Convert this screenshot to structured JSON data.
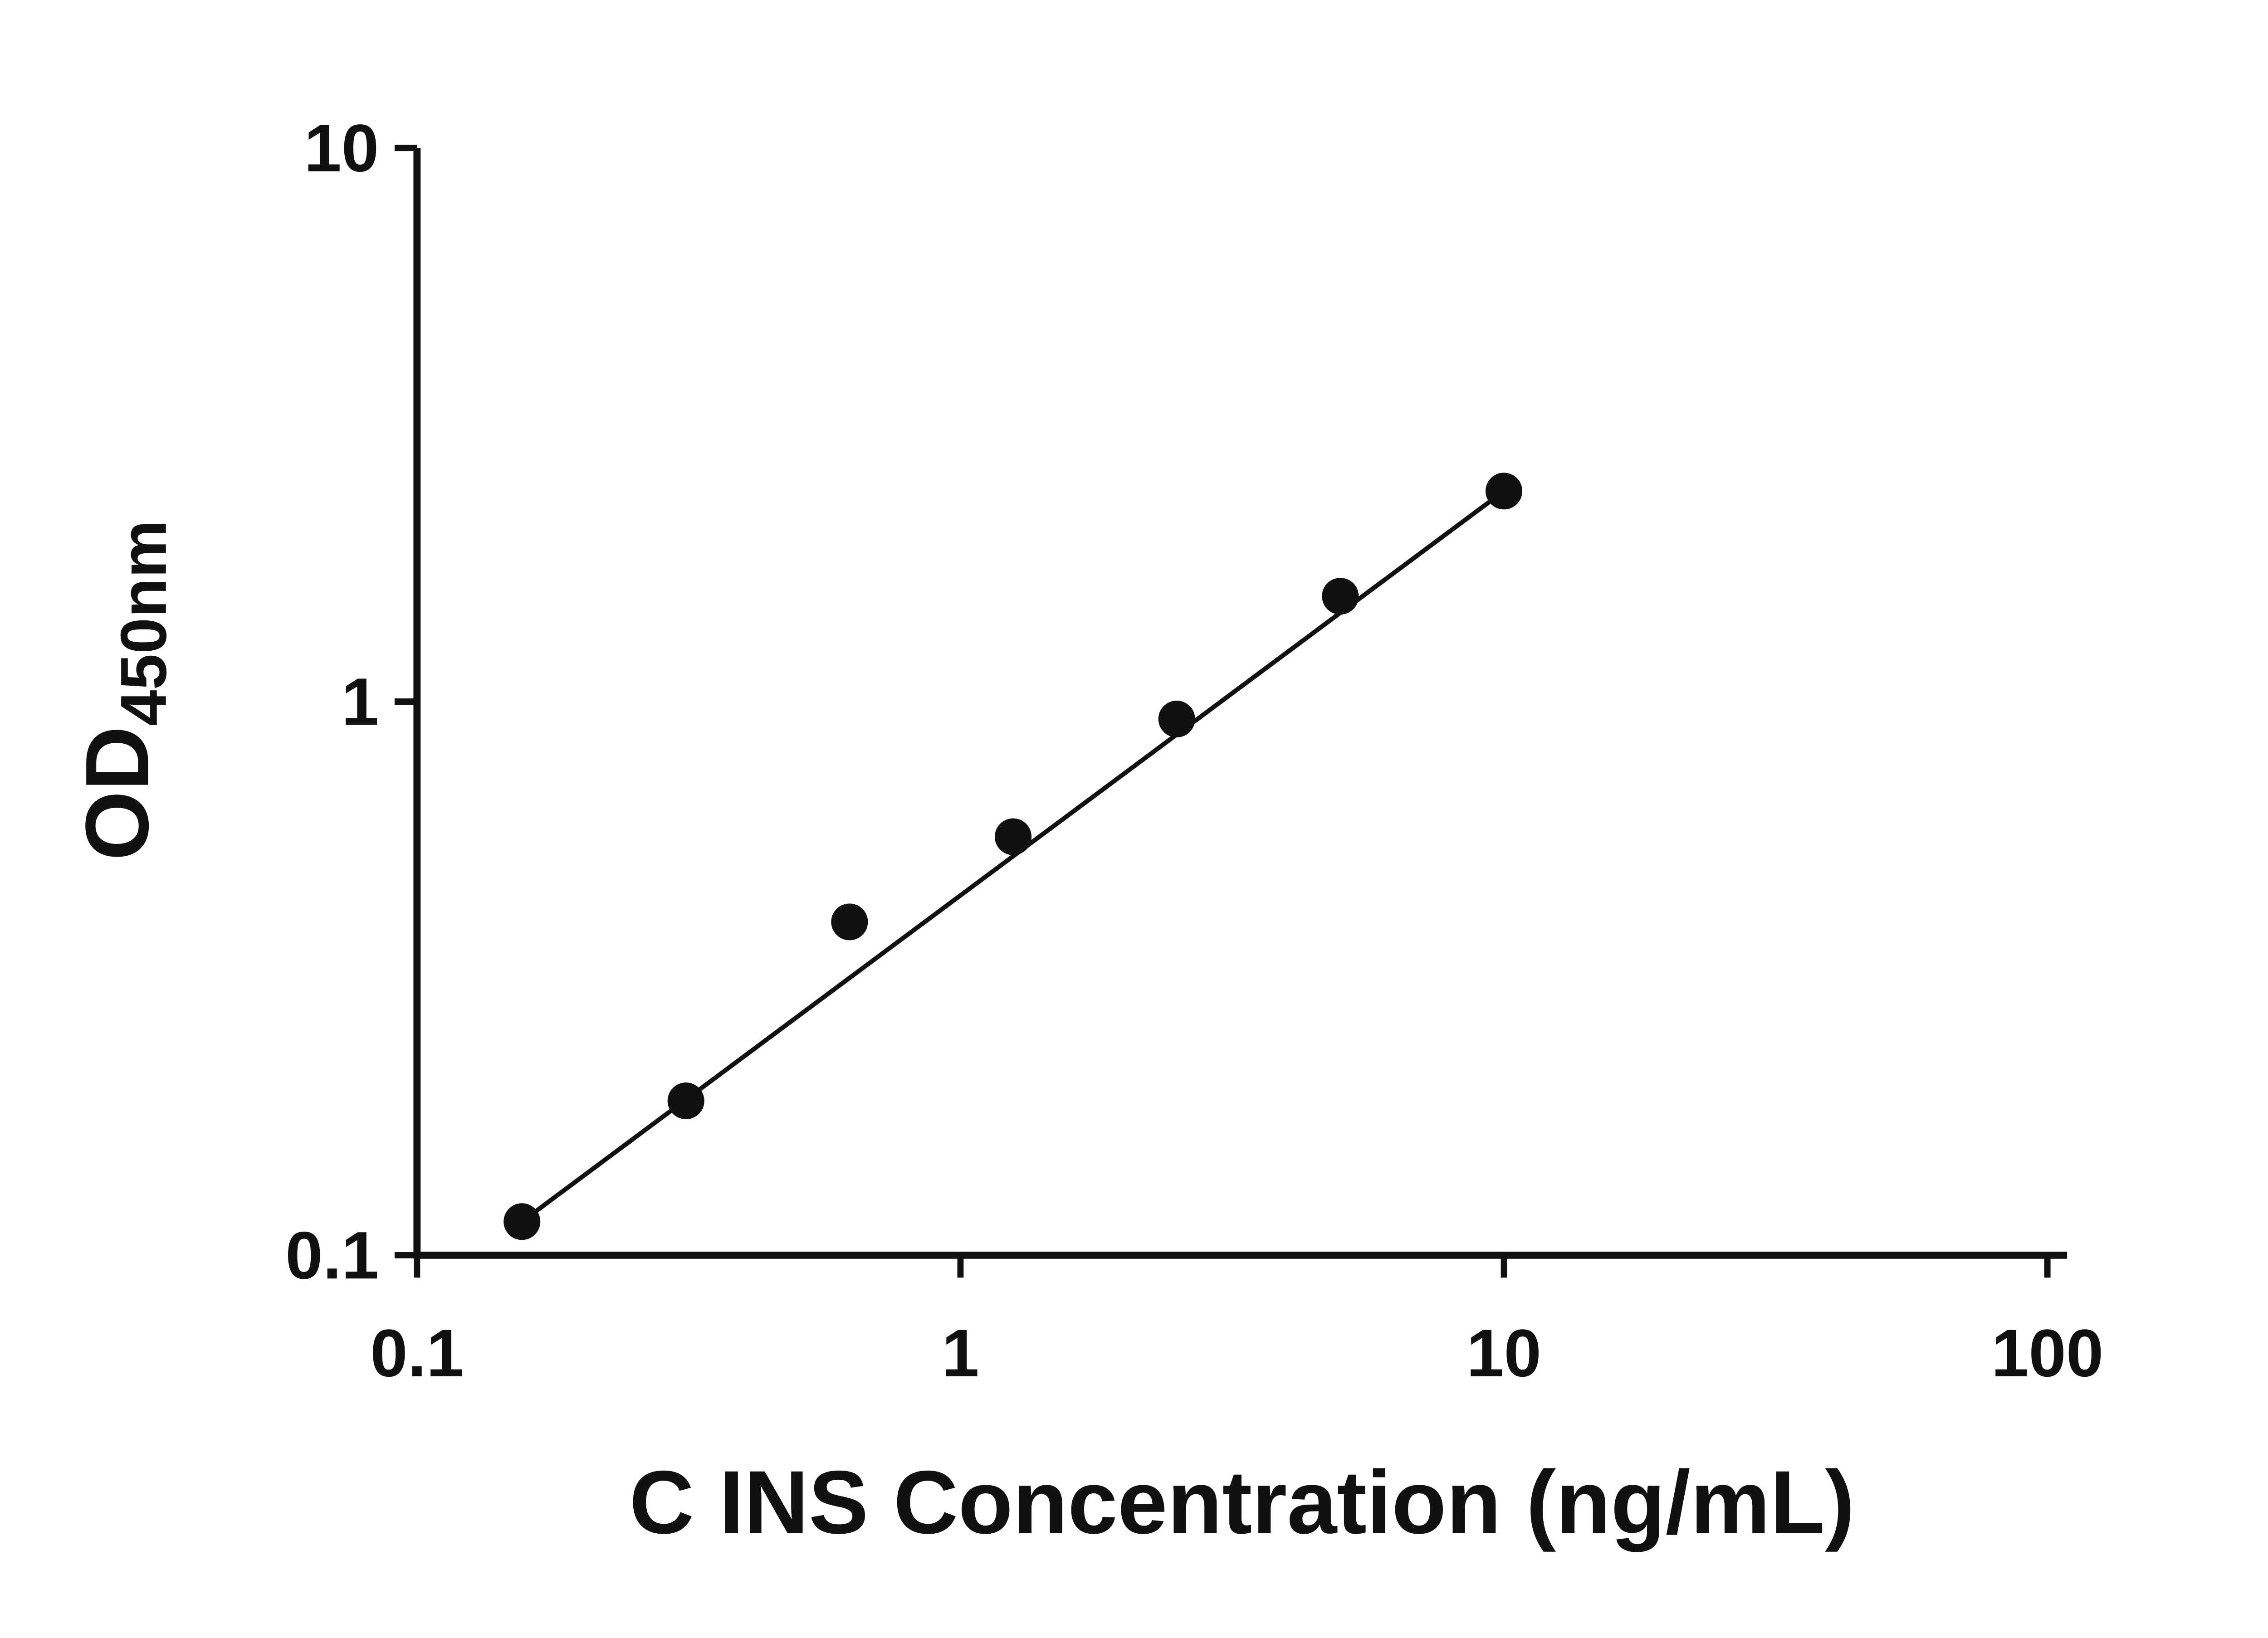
{
  "chart_data": {
    "type": "scatter",
    "title": "",
    "xlabel": "C INS Concentration (ng/mL)",
    "ylabel": "OD",
    "ylabel_subscript": "450nm",
    "x_scale": "log",
    "y_scale": "log",
    "xlim": [
      0.1,
      100
    ],
    "ylim": [
      0.1,
      10
    ],
    "x_ticks": [
      0.1,
      1,
      10,
      100
    ],
    "x_tick_labels": [
      "0.1",
      "1",
      "10",
      "100"
    ],
    "y_ticks": [
      0.1,
      1,
      10
    ],
    "y_tick_labels": [
      "0.1",
      "1",
      "10"
    ],
    "grid": false,
    "legend": "none",
    "marker_color": "#111111",
    "line_color": "#111111",
    "background_color": "#ffffff",
    "points": [
      {
        "x": 0.156,
        "y": 0.115
      },
      {
        "x": 0.3125,
        "y": 0.19
      },
      {
        "x": 0.625,
        "y": 0.4
      },
      {
        "x": 1.25,
        "y": 0.57
      },
      {
        "x": 2.5,
        "y": 0.93
      },
      {
        "x": 5,
        "y": 1.55
      },
      {
        "x": 10,
        "y": 2.4
      }
    ],
    "trendline": {
      "type": "linear-loglog",
      "from_x": 0.156,
      "to_x": 10
    }
  }
}
